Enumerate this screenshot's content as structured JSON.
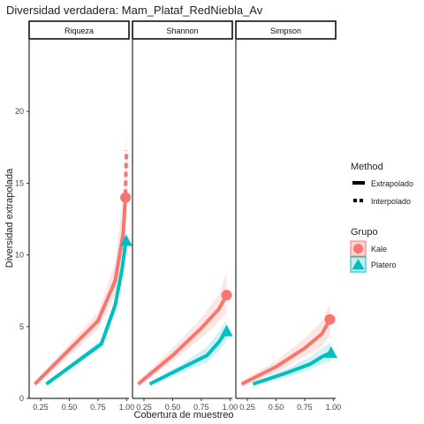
{
  "chart_data": {
    "type": "line",
    "title": "Diversidad verdadera: Mam_Plataf_RedNiebla_Av",
    "xlabel": "Cobertura de muestreo",
    "ylabel": "Diversidad extrapolada",
    "ylim": [
      0,
      25
    ],
    "yticks": [
      0,
      5,
      10,
      15,
      20
    ],
    "xlim": [
      0.15,
      1.02
    ],
    "xticks": [
      0.25,
      0.5,
      0.75,
      1.0
    ],
    "xtick_labels": [
      "0.25",
      "0.50",
      "0.75",
      "1.00"
    ],
    "legend_placement": "right",
    "legend": {
      "method_title": "Method",
      "method_items": [
        "Extrapolado",
        "Interpolado"
      ],
      "grupo_title": "Grupo",
      "grupo_items": [
        "Kale",
        "Platero"
      ]
    },
    "colors": {
      "Kale": "#F8766D",
      "Platero": "#00BFC4"
    },
    "panels": [
      {
        "name": "Riqueza",
        "series": [
          {
            "name": "Kale",
            "interpolado": [
              [
                0.2,
                1.0
              ],
              [
                0.75,
                5.4
              ],
              [
                0.9,
                8.2
              ],
              [
                0.97,
                11.5
              ],
              [
                0.985,
                13.5
              ],
              [
                0.99,
                14.0
              ]
            ],
            "extrapolado": [
              [
                0.99,
                14.2
              ],
              [
                0.993,
                15.5
              ],
              [
                0.996,
                16.6
              ],
              [
                0.998,
                17.3
              ]
            ],
            "ci_upper": [
              [
                0.2,
                1.2
              ],
              [
                0.75,
                6.0
              ],
              [
                0.9,
                9.5
              ],
              [
                0.97,
                14.0
              ],
              [
                0.99,
                17.0
              ],
              [
                0.998,
                19.0
              ]
            ],
            "ci_lower": [
              [
                0.2,
                0.8
              ],
              [
                0.75,
                4.8
              ],
              [
                0.9,
                7.2
              ],
              [
                0.97,
                10.0
              ],
              [
                0.99,
                12.0
              ],
              [
                0.998,
                12.5
              ]
            ],
            "observed": [
              0.99,
              14.0
            ],
            "marker": "circle"
          },
          {
            "name": "Platero",
            "interpolado": [
              [
                0.3,
                1.0
              ],
              [
                0.78,
                3.8
              ],
              [
                0.9,
                6.5
              ],
              [
                0.96,
                9.0
              ],
              [
                0.985,
                10.5
              ],
              [
                0.995,
                11.0
              ]
            ],
            "extrapolado": [],
            "ci_upper": [
              [
                0.3,
                1.1
              ],
              [
                0.78,
                4.1
              ],
              [
                0.9,
                7.0
              ],
              [
                0.96,
                9.6
              ],
              [
                0.995,
                11.8
              ]
            ],
            "ci_lower": [
              [
                0.3,
                0.9
              ],
              [
                0.78,
                3.5
              ],
              [
                0.9,
                6.0
              ],
              [
                0.96,
                8.4
              ],
              [
                0.995,
                10.2
              ]
            ],
            "observed": [
              0.995,
              11.0
            ],
            "marker": "triangle"
          }
        ]
      },
      {
        "name": "Shannon",
        "series": [
          {
            "name": "Kale",
            "interpolado": [
              [
                0.2,
                1.0
              ],
              [
                0.5,
                3.0
              ],
              [
                0.75,
                4.9
              ],
              [
                0.9,
                6.2
              ],
              [
                0.97,
                7.2
              ]
            ],
            "extrapolado": [],
            "ci_upper": [
              [
                0.2,
                1.2
              ],
              [
                0.5,
                3.5
              ],
              [
                0.75,
                5.6
              ],
              [
                0.9,
                7.2
              ],
              [
                0.97,
                8.8
              ]
            ],
            "ci_lower": [
              [
                0.2,
                0.8
              ],
              [
                0.5,
                2.6
              ],
              [
                0.75,
                4.2
              ],
              [
                0.9,
                5.3
              ],
              [
                0.97,
                6.0
              ]
            ],
            "observed": [
              0.97,
              7.2
            ],
            "marker": "circle"
          },
          {
            "name": "Platero",
            "interpolado": [
              [
                0.3,
                1.0
              ],
              [
                0.6,
                2.2
              ],
              [
                0.8,
                3.0
              ],
              [
                0.9,
                3.9
              ],
              [
                0.97,
                4.7
              ]
            ],
            "extrapolado": [],
            "ci_upper": [
              [
                0.3,
                1.1
              ],
              [
                0.6,
                2.5
              ],
              [
                0.8,
                3.6
              ],
              [
                0.9,
                4.6
              ],
              [
                0.97,
                5.5
              ]
            ],
            "ci_lower": [
              [
                0.3,
                0.9
              ],
              [
                0.6,
                1.9
              ],
              [
                0.8,
                2.5
              ],
              [
                0.9,
                3.3
              ],
              [
                0.97,
                4.0
              ]
            ],
            "observed": [
              0.97,
              4.7
            ],
            "marker": "triangle"
          }
        ]
      },
      {
        "name": "Simpson",
        "series": [
          {
            "name": "Kale",
            "interpolado": [
              [
                0.2,
                1.0
              ],
              [
                0.5,
                2.2
              ],
              [
                0.75,
                3.5
              ],
              [
                0.9,
                4.5
              ],
              [
                0.97,
                5.5
              ]
            ],
            "extrapolado": [],
            "ci_upper": [
              [
                0.2,
                1.2
              ],
              [
                0.5,
                2.6
              ],
              [
                0.75,
                4.2
              ],
              [
                0.9,
                5.4
              ],
              [
                0.97,
                6.6
              ]
            ],
            "ci_lower": [
              [
                0.2,
                0.8
              ],
              [
                0.5,
                1.8
              ],
              [
                0.75,
                2.9
              ],
              [
                0.9,
                3.6
              ],
              [
                0.97,
                4.4
              ]
            ],
            "observed": [
              0.97,
              5.5
            ],
            "marker": "circle"
          },
          {
            "name": "Platero",
            "interpolado": [
              [
                0.3,
                1.0
              ],
              [
                0.6,
                1.8
              ],
              [
                0.8,
                2.4
              ],
              [
                0.9,
                2.9
              ],
              [
                0.98,
                3.2
              ]
            ],
            "extrapolado": [],
            "ci_upper": [
              [
                0.3,
                1.1
              ],
              [
                0.6,
                2.1
              ],
              [
                0.8,
                2.9
              ],
              [
                0.9,
                3.5
              ],
              [
                0.98,
                3.9
              ]
            ],
            "ci_lower": [
              [
                0.3,
                0.9
              ],
              [
                0.6,
                1.5
              ],
              [
                0.8,
                2.0
              ],
              [
                0.9,
                2.4
              ],
              [
                0.98,
                2.6
              ]
            ],
            "observed": [
              0.98,
              3.2
            ],
            "marker": "triangle"
          }
        ]
      }
    ]
  }
}
